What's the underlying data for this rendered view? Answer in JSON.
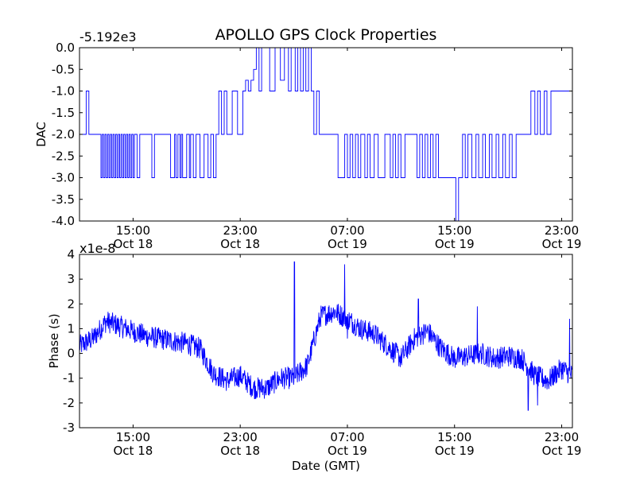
{
  "figure": {
    "title": "APOLLO GPS Clock Properties",
    "xlabel": "Date (GMT)"
  },
  "chart_data": [
    {
      "type": "line",
      "title": "APOLLO GPS Clock Properties",
      "ylabel": "DAC",
      "offset_text": "-5.192e3",
      "ylim": [
        -4.0,
        0.0
      ],
      "yticks": [
        -4.0,
        -3.5,
        -3.0,
        -2.5,
        -2.0,
        -1.5,
        -1.0,
        -0.5,
        0.0
      ],
      "ytick_labels": [
        "-4.0",
        "-3.5",
        "-3.0",
        "-2.5",
        "-2.0",
        "-1.5",
        "-1.0",
        "-0.5",
        "0.0"
      ],
      "x_unit": "hours since Oct 18 11:00 GMT",
      "xlim": [
        0.0,
        36.8
      ],
      "xticks": [
        4,
        12,
        20,
        28,
        36
      ],
      "xtick_labels": [
        [
          "15:00",
          "Oct 18"
        ],
        [
          "23:00",
          "Oct 18"
        ],
        [
          "07:00",
          "Oct 19"
        ],
        [
          "15:00",
          "Oct 19"
        ],
        [
          "23:00",
          "Oct 19"
        ]
      ],
      "color": "#0000ff",
      "grid": false,
      "series": [
        {
          "name": "",
          "step": true,
          "x": [
            0.0,
            0.3,
            0.5,
            0.7,
            1.2,
            1.6,
            1.7,
            1.8,
            1.9,
            2.0,
            2.1,
            2.2,
            2.3,
            2.4,
            2.5,
            2.6,
            2.7,
            2.8,
            2.9,
            3.0,
            3.1,
            3.2,
            3.3,
            3.4,
            3.5,
            3.6,
            3.7,
            3.8,
            3.9,
            4.0,
            4.1,
            4.3,
            4.5,
            4.7,
            5.4,
            5.6,
            6.8,
            7.1,
            7.2,
            7.35,
            7.5,
            7.6,
            7.7,
            8.0,
            8.2,
            8.3,
            8.5,
            8.7,
            9.0,
            9.3,
            9.6,
            9.8,
            10.0,
            10.2,
            10.4,
            10.6,
            10.8,
            11.0,
            11.4,
            11.8,
            12.2,
            12.4,
            12.6,
            12.8,
            13.0,
            13.2,
            13.4,
            13.6,
            14.2,
            14.6,
            15.0,
            15.3,
            15.6,
            15.8,
            16.1,
            16.3,
            16.5,
            16.7,
            16.9,
            17.1,
            17.3,
            17.5,
            17.7,
            17.9,
            18.5,
            19.3,
            19.8,
            20.0,
            20.2,
            20.4,
            20.6,
            20.8,
            21.0,
            21.3,
            21.5,
            21.7,
            22.0,
            22.3,
            22.8,
            23.2,
            23.4,
            23.6,
            23.8,
            24.0,
            24.3,
            25.2,
            25.4,
            25.6,
            25.8,
            26.0,
            26.2,
            26.4,
            26.6,
            26.8,
            27.8,
            28.1,
            28.3,
            28.6,
            28.8,
            29.0,
            29.3,
            29.6,
            29.8,
            30.1,
            30.3,
            30.6,
            30.8,
            31.1,
            31.3,
            31.6,
            31.8,
            32.1,
            32.3,
            32.6,
            33.2,
            33.5,
            33.7,
            34.0,
            34.2,
            34.4,
            34.7,
            34.9,
            35.2,
            36.8
          ],
          "y": [
            -2.0,
            -2.0,
            -1.0,
            -2.0,
            -2.0,
            -3.0,
            -2.0,
            -3.0,
            -2.0,
            -3.0,
            -2.0,
            -3.0,
            -2.0,
            -3.0,
            -2.0,
            -3.0,
            -2.0,
            -3.0,
            -2.0,
            -3.0,
            -2.0,
            -3.0,
            -2.0,
            -3.0,
            -2.0,
            -3.0,
            -2.0,
            -3.0,
            -2.0,
            -3.0,
            -2.0,
            -3.0,
            -2.0,
            -2.0,
            -3.0,
            -2.0,
            -3.0,
            -2.0,
            -3.0,
            -2.0,
            -3.0,
            -2.0,
            -3.0,
            -2.0,
            -3.0,
            -2.0,
            -3.0,
            -2.0,
            -3.0,
            -2.0,
            -3.0,
            -2.0,
            -3.0,
            -2.0,
            -1.0,
            -2.0,
            -1.0,
            -2.0,
            -1.0,
            -2.0,
            -1.0,
            -0.75,
            -1.0,
            -0.75,
            -0.5,
            0.0,
            -1.0,
            0.0,
            -1.0,
            0.0,
            -0.75,
            0.0,
            -1.0,
            0.0,
            -1.0,
            0.0,
            -1.0,
            0.0,
            -1.0,
            0.0,
            -1.0,
            -2.0,
            -1.0,
            -2.0,
            -2.0,
            -3.0,
            -2.0,
            -3.0,
            -2.0,
            -3.0,
            -2.0,
            -3.0,
            -2.0,
            -3.0,
            -2.0,
            -3.0,
            -2.0,
            -3.0,
            -2.0,
            -3.0,
            -2.0,
            -3.0,
            -2.0,
            -3.0,
            -2.0,
            -3.0,
            -2.0,
            -3.0,
            -2.0,
            -3.0,
            -2.0,
            -3.0,
            -2.0,
            -3.0,
            -3.0,
            -4.0,
            -3.0,
            -2.0,
            -3.0,
            -2.0,
            -3.0,
            -2.0,
            -3.0,
            -2.0,
            -3.0,
            -2.0,
            -3.0,
            -2.0,
            -3.0,
            -2.0,
            -3.0,
            -2.0,
            -3.0,
            -2.0,
            -2.0,
            -2.0,
            -1.0,
            -2.0,
            -1.0,
            -2.0,
            -1.0,
            -2.0,
            -1.0,
            -2.0
          ]
        }
      ]
    },
    {
      "type": "line",
      "ylabel": "Phase (s)",
      "offset_text": "x1e-8",
      "ylim": [
        -3,
        4
      ],
      "yticks": [
        -3,
        -2,
        -1,
        0,
        1,
        2,
        3,
        4
      ],
      "ytick_labels": [
        "-3",
        "-2",
        "-1",
        "0",
        "1",
        "2",
        "3",
        "4"
      ],
      "x_unit": "hours since Oct 18 11:00 GMT",
      "xlim": [
        0.0,
        36.8
      ],
      "xticks": [
        4,
        12,
        20,
        28,
        36
      ],
      "xtick_labels": [
        [
          "15:00",
          "Oct 18"
        ],
        [
          "23:00",
          "Oct 18"
        ],
        [
          "07:00",
          "Oct 19"
        ],
        [
          "15:00",
          "Oct 19"
        ],
        [
          "23:00",
          "Oct 19"
        ]
      ],
      "xlabel": "Date (GMT)",
      "color": "#0000ff",
      "grid": false,
      "noise_amplitude": 0.45,
      "series": [
        {
          "name": "",
          "x": [
            0,
            1,
            2,
            3,
            4,
            5,
            6,
            7,
            8,
            9,
            10,
            11,
            12,
            13,
            14,
            15,
            16,
            17,
            18,
            19,
            20,
            21,
            22,
            23,
            24,
            25,
            26,
            27,
            28,
            29,
            30,
            31,
            32,
            33,
            34,
            35,
            36,
            36.8
          ],
          "y": [
            0.3,
            0.6,
            1.3,
            1.1,
            0.9,
            0.7,
            0.6,
            0.5,
            0.4,
            0.2,
            -0.8,
            -1.1,
            -0.9,
            -1.4,
            -1.4,
            -1.0,
            -1.0,
            -0.5,
            1.5,
            1.7,
            1.4,
            1.0,
            0.8,
            0.3,
            -0.2,
            0.6,
            0.9,
            0.2,
            -0.2,
            -0.1,
            0.0,
            -0.2,
            -0.1,
            -0.2,
            -0.9,
            -1.1,
            -0.6,
            -0.9
          ],
          "spikes": [
            [
              16.05,
              3.7
            ],
            [
              16.1,
              -1.0
            ],
            [
              19.8,
              3.6
            ],
            [
              20.0,
              0.6
            ],
            [
              25.3,
              2.2
            ],
            [
              25.6,
              0.8
            ],
            [
              29.7,
              1.9
            ],
            [
              29.9,
              0.1
            ],
            [
              33.5,
              -2.3
            ],
            [
              34.2,
              -2.1
            ],
            [
              36.6,
              1.4
            ]
          ]
        }
      ]
    }
  ]
}
